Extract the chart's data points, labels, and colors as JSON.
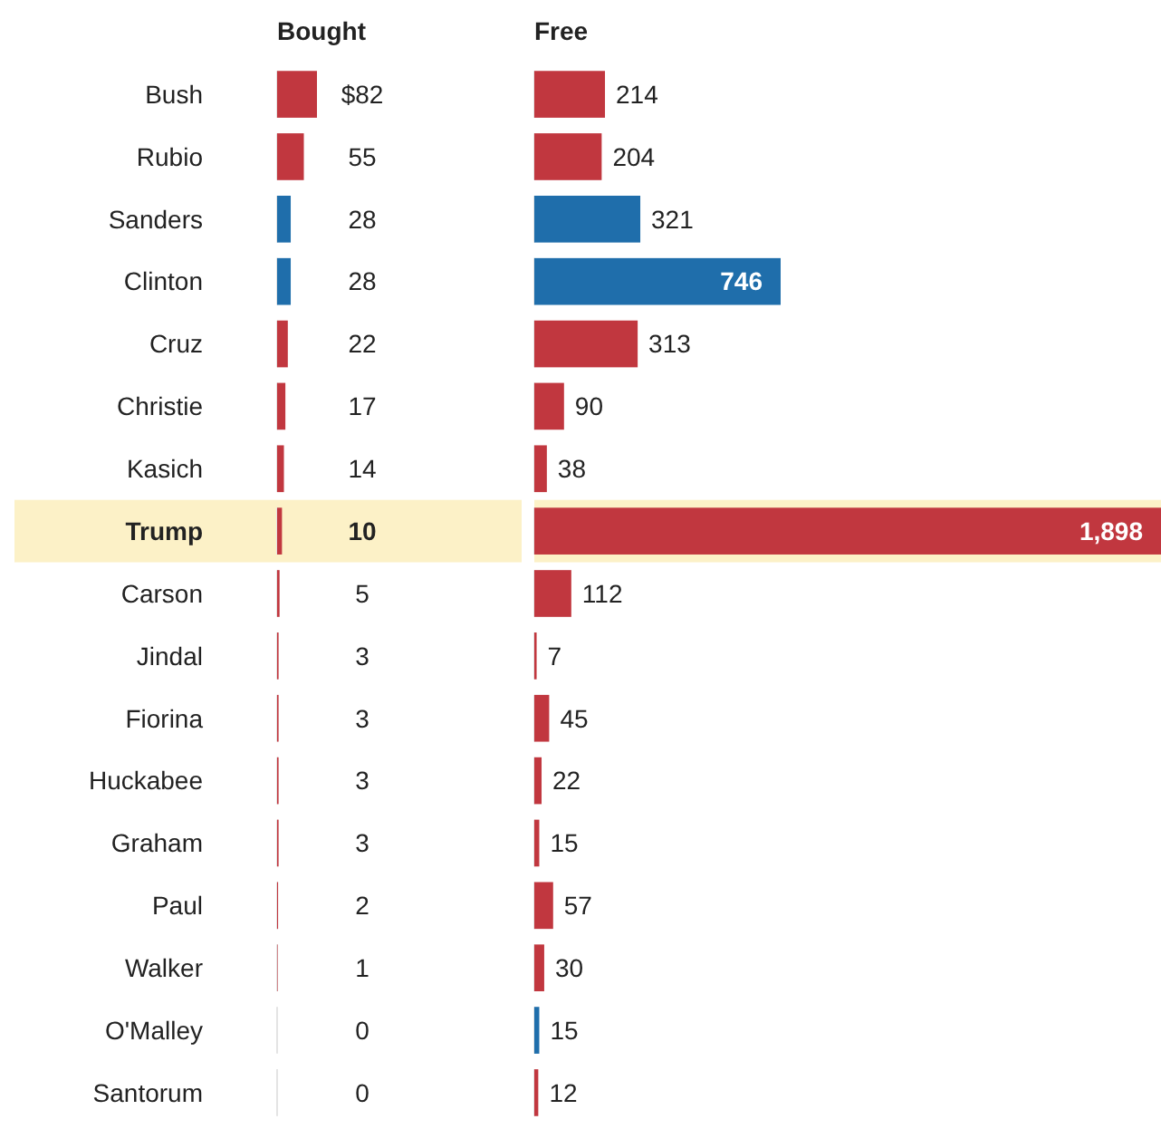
{
  "chart_data": [
    {
      "type": "bar",
      "orientation": "horizontal",
      "title": "Bought",
      "tick_labels": "y",
      "data_labels": true,
      "categories": [
        "Bush",
        "Rubio",
        "Sanders",
        "Clinton",
        "Cruz",
        "Christie",
        "Kasich",
        "Trump",
        "Carson",
        "Jindal",
        "Fiorina",
        "Huckabee",
        "Graham",
        "Paul",
        "Walker",
        "O'Malley",
        "Santorum"
      ],
      "values": [
        82,
        55,
        28,
        28,
        22,
        17,
        14,
        10,
        5,
        3,
        3,
        3,
        3,
        2,
        1,
        0,
        0
      ],
      "value_labels": [
        "$82",
        "55",
        "28",
        "28",
        "22",
        "17",
        "14",
        "10",
        "5",
        "3",
        "3",
        "3",
        "3",
        "2",
        "1",
        "0",
        "0"
      ],
      "colors": [
        "#c1373f",
        "#c1373f",
        "#1f6eab",
        "#1f6eab",
        "#c1373f",
        "#c1373f",
        "#c1373f",
        "#c1373f",
        "#c1373f",
        "#c1373f",
        "#c1373f",
        "#c1373f",
        "#c1373f",
        "#c1373f",
        "#c1373f",
        "#1f6eab",
        "#c1373f"
      ],
      "bands": [
        {
          "axis": "y",
          "from": "Trump",
          "to": "Trump",
          "color": "#fcf1c7"
        }
      ]
    },
    {
      "type": "bar",
      "orientation": "horizontal",
      "title": "Free",
      "tick_labels": false,
      "data_labels": true,
      "categories": [
        "Bush",
        "Rubio",
        "Sanders",
        "Clinton",
        "Cruz",
        "Christie",
        "Kasich",
        "Trump",
        "Carson",
        "Jindal",
        "Fiorina",
        "Huckabee",
        "Graham",
        "Paul",
        "Walker",
        "O'Malley",
        "Santorum"
      ],
      "values": [
        214,
        204,
        321,
        746,
        313,
        90,
        38,
        1898,
        112,
        7,
        45,
        22,
        15,
        57,
        30,
        15,
        12
      ],
      "value_labels": [
        "214",
        "204",
        "321",
        "746",
        "313",
        "90",
        "38",
        "1,898",
        "112",
        "7",
        "45",
        "22",
        "15",
        "57",
        "30",
        "15",
        "12"
      ],
      "colors": [
        "#c1373f",
        "#c1373f",
        "#1f6eab",
        "#1f6eab",
        "#c1373f",
        "#c1373f",
        "#c1373f",
        "#c1373f",
        "#c1373f",
        "#c1373f",
        "#c1373f",
        "#c1373f",
        "#c1373f",
        "#c1373f",
        "#c1373f",
        "#1f6eab",
        "#c1373f"
      ],
      "bands": [
        {
          "axis": "y",
          "from": "Trump",
          "to": "Trump",
          "color": "#fcf1c7"
        }
      ]
    }
  ]
}
